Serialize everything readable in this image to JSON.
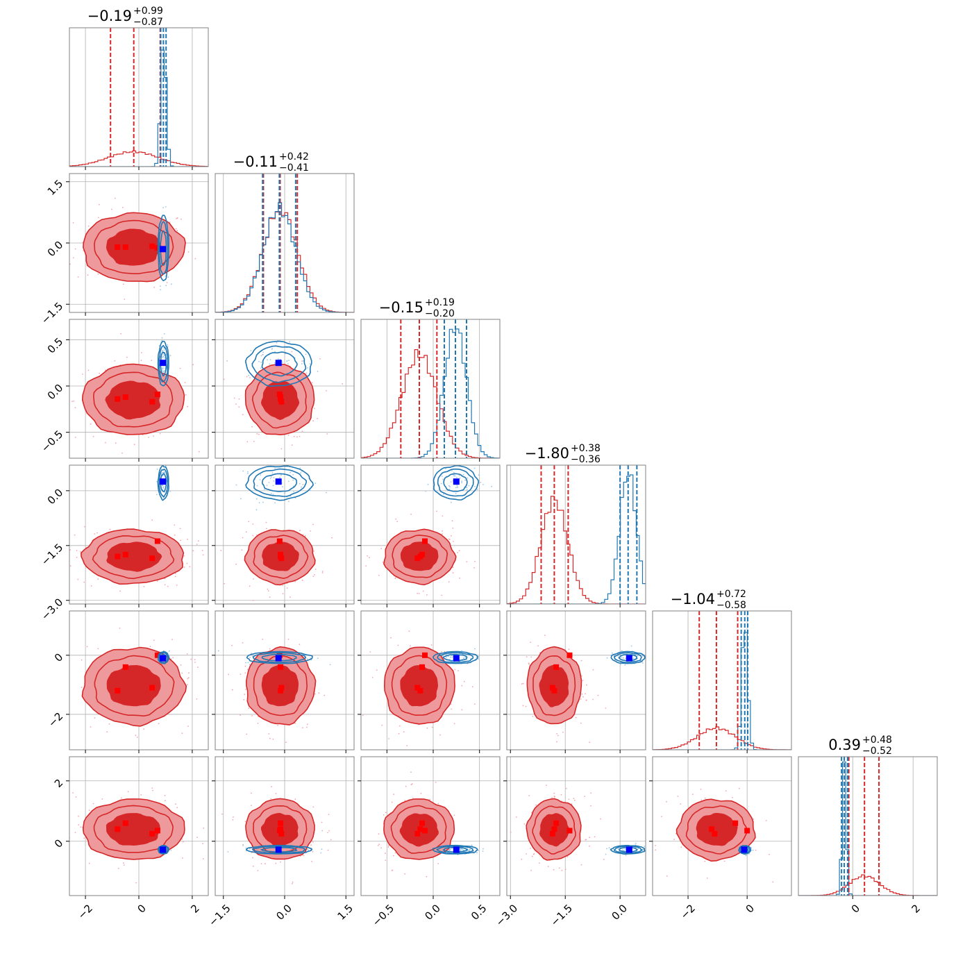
{
  "chart_data": {
    "type": "corner",
    "title": "",
    "grid": true,
    "colors": {
      "red": "#d62728",
      "red_fill": "#ee9a9d",
      "blue": "#1f77b4",
      "red_marker": "#ff0000",
      "blue_marker": "#0000ff"
    },
    "parameters": [
      {
        "range": [
          -2.6,
          2.6
        ],
        "ticks": [
          -2,
          0,
          2
        ],
        "tick_labels": [
          "−2",
          "0",
          "2"
        ],
        "truth": 0.9,
        "title_median": "−0.19",
        "title_plus": "+0.99",
        "title_minus": "−0.87",
        "red_mean": -0.2,
        "red_sd": 0.95,
        "blue_mean": 0.92,
        "blue_sd": 0.1,
        "red_quantiles": [
          -1.06,
          -0.19,
          0.8
        ],
        "blue_quantiles": [
          0.82,
          0.92,
          1.02
        ],
        "red_points": [
          -0.8,
          -0.5,
          0.5,
          0.7
        ]
      },
      {
        "range": [
          -1.7,
          1.7
        ],
        "ticks": [
          -1.5,
          0.0,
          1.5
        ],
        "tick_labels": [
          "−1.5",
          "0.0",
          "1.5"
        ],
        "truth": -0.15,
        "title_median": "−0.11",
        "title_plus": "+0.42",
        "title_minus": "−0.41",
        "red_mean": -0.11,
        "red_sd": 0.42,
        "blue_mean": -0.13,
        "blue_sd": 0.4,
        "red_quantiles": [
          -0.52,
          -0.11,
          0.31
        ],
        "blue_quantiles": [
          -0.54,
          -0.13,
          0.27
        ],
        "red_points": [
          -0.1,
          -0.1,
          -0.08,
          -0.12
        ]
      },
      {
        "range": [
          -0.78,
          0.72
        ],
        "ticks": [
          -0.5,
          0.0,
          0.5
        ],
        "tick_labels": [
          "−0.5",
          "0.0",
          "0.5"
        ],
        "truth": 0.25,
        "title_median": "−0.15",
        "title_plus": "+0.19",
        "title_minus": "−0.20",
        "red_mean": -0.15,
        "red_sd": 0.19,
        "blue_mean": 0.24,
        "blue_sd": 0.12,
        "red_quantiles": [
          -0.35,
          -0.15,
          0.04
        ],
        "blue_quantiles": [
          0.12,
          0.24,
          0.36
        ],
        "red_points": [
          -0.14,
          -0.12,
          -0.17,
          -0.09
        ]
      },
      {
        "range": [
          -3.1,
          0.7
        ],
        "ticks": [
          -3.0,
          -1.5,
          0.0
        ],
        "tick_labels": [
          "−3.0",
          "−1.5",
          "0.0"
        ],
        "truth": 0.25,
        "title_median": "−1.80",
        "title_plus": "+0.38",
        "title_minus": "−0.36",
        "red_mean": -1.8,
        "red_sd": 0.37,
        "blue_mean": 0.22,
        "blue_sd": 0.23,
        "red_quantiles": [
          -2.16,
          -1.8,
          -1.42
        ],
        "blue_quantiles": [
          0.0,
          0.22,
          0.46
        ],
        "red_points": [
          -1.8,
          -1.75,
          -1.85,
          -1.38
        ]
      },
      {
        "range": [
          -3.2,
          1.5
        ],
        "ticks": [
          -2,
          0
        ],
        "tick_labels": [
          "−2",
          "0"
        ],
        "truth": -0.1,
        "title_median": "−1.04",
        "title_plus": "+0.72",
        "title_minus": "−0.58",
        "red_mean": -1.04,
        "red_sd": 0.65,
        "blue_mean": -0.08,
        "blue_sd": 0.1,
        "red_quantiles": [
          -1.62,
          -1.04,
          -0.32
        ],
        "blue_quantiles": [
          -0.2,
          -0.08,
          0.02
        ],
        "red_points": [
          -1.2,
          -0.4,
          -1.1,
          0.0
        ]
      },
      {
        "range": [
          -1.8,
          2.8
        ],
        "ticks": [
          0,
          2
        ],
        "tick_labels": [
          "0",
          "2"
        ],
        "truth": -0.28,
        "title_median": "0.39",
        "title_plus": "+0.48",
        "title_minus": "−0.52",
        "red_mean": 0.39,
        "red_sd": 0.5,
        "blue_mean": -0.28,
        "blue_sd": 0.07,
        "red_quantiles": [
          -0.13,
          0.39,
          0.87
        ],
        "blue_quantiles": [
          -0.37,
          -0.28,
          -0.17
        ],
        "red_points": [
          0.4,
          0.6,
          0.25,
          0.35
        ]
      }
    ],
    "y_tick_labels_rotated": [
      {
        "row": 1,
        "labels": [
          "1.5",
          "0.0",
          "−1.5"
        ]
      },
      {
        "row": 2,
        "labels": [
          "0.5",
          "0.0",
          "−0.5"
        ]
      },
      {
        "row": 3,
        "labels": [
          "0.0",
          "−1.5",
          "−3.0"
        ]
      },
      {
        "row": 4,
        "labels": [
          "0",
          "−2"
        ]
      },
      {
        "row": 5,
        "labels": [
          "2",
          "0"
        ]
      }
    ]
  }
}
